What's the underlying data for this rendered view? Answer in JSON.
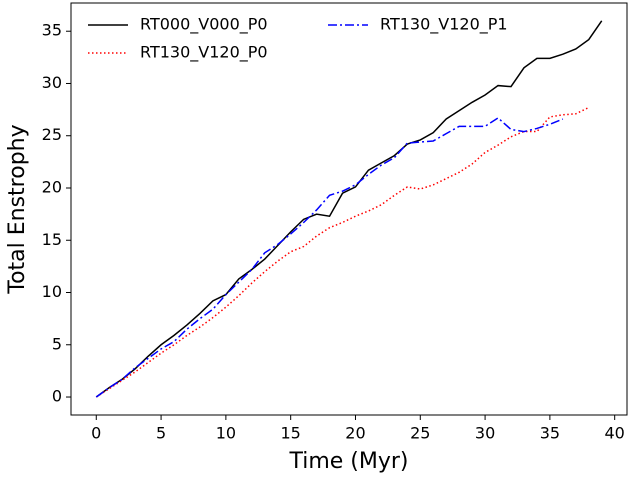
{
  "chart_data": {
    "type": "line",
    "xlabel": "Time (Myr)",
    "ylabel": "Total Enstrophy",
    "x": [
      0,
      1,
      2,
      3,
      4,
      5,
      6,
      7,
      8,
      9,
      10,
      11,
      12,
      13,
      14,
      15,
      16,
      17,
      18,
      19,
      20,
      21,
      22,
      23,
      24,
      25,
      26,
      27,
      28,
      29,
      30,
      31,
      32,
      33,
      34,
      35,
      36,
      37,
      38,
      39
    ],
    "series": [
      {
        "name": "RT000_V000_P0",
        "color": "#000000",
        "dash": "solid",
        "values": [
          0,
          0.9,
          1.7,
          2.7,
          3.9,
          5.0,
          5.9,
          6.9,
          8.0,
          9.2,
          9.8,
          11.3,
          12.2,
          13.2,
          14.5,
          15.8,
          17.0,
          17.5,
          17.3,
          19.5,
          20.1,
          21.7,
          22.4,
          23.1,
          24.2,
          24.6,
          25.3,
          26.6,
          27.4,
          28.2,
          28.9,
          29.8,
          29.7,
          31.5,
          32.4,
          32.4,
          32.8,
          33.3,
          34.2,
          36.0
        ]
      },
      {
        "name": "RT130_V120_P0",
        "color": "#ff0000",
        "dash": "dotted",
        "values": [
          0,
          0.8,
          1.6,
          2.4,
          3.3,
          4.2,
          5.0,
          5.9,
          6.7,
          7.6,
          8.6,
          9.7,
          10.9,
          12.0,
          13.0,
          13.9,
          14.4,
          15.4,
          16.2,
          16.7,
          17.3,
          17.8,
          18.4,
          19.3,
          20.1,
          19.9,
          20.3,
          20.9,
          21.5,
          22.3,
          23.4,
          24.1,
          24.9,
          25.4,
          25.4,
          26.8,
          27.0,
          27.1,
          27.7,
          null
        ]
      },
      {
        "name": "RT130_V120_P1",
        "color": "#0000ff",
        "dash": "dashdot",
        "values": [
          0,
          0.9,
          1.7,
          2.8,
          3.7,
          4.6,
          5.3,
          6.5,
          7.5,
          8.4,
          9.8,
          11.0,
          12.2,
          13.8,
          14.6,
          15.6,
          16.7,
          17.9,
          19.3,
          19.7,
          20.3,
          21.3,
          22.2,
          22.9,
          24.3,
          24.4,
          24.5,
          25.2,
          25.9,
          25.9,
          25.9,
          26.7,
          25.6,
          25.4,
          25.7,
          26.1,
          26.6,
          null,
          null,
          null
        ]
      }
    ],
    "xlim": [
      -1.95,
      40.95
    ],
    "xticks": [
      0,
      5,
      10,
      15,
      20,
      25,
      30,
      35,
      40
    ],
    "ylim": [
      -1.72,
      37.7
    ],
    "yticks": [
      0,
      5,
      10,
      15,
      20,
      25,
      30,
      35
    ],
    "legend": "upper left",
    "legend_columns": 2,
    "grid": false
  }
}
